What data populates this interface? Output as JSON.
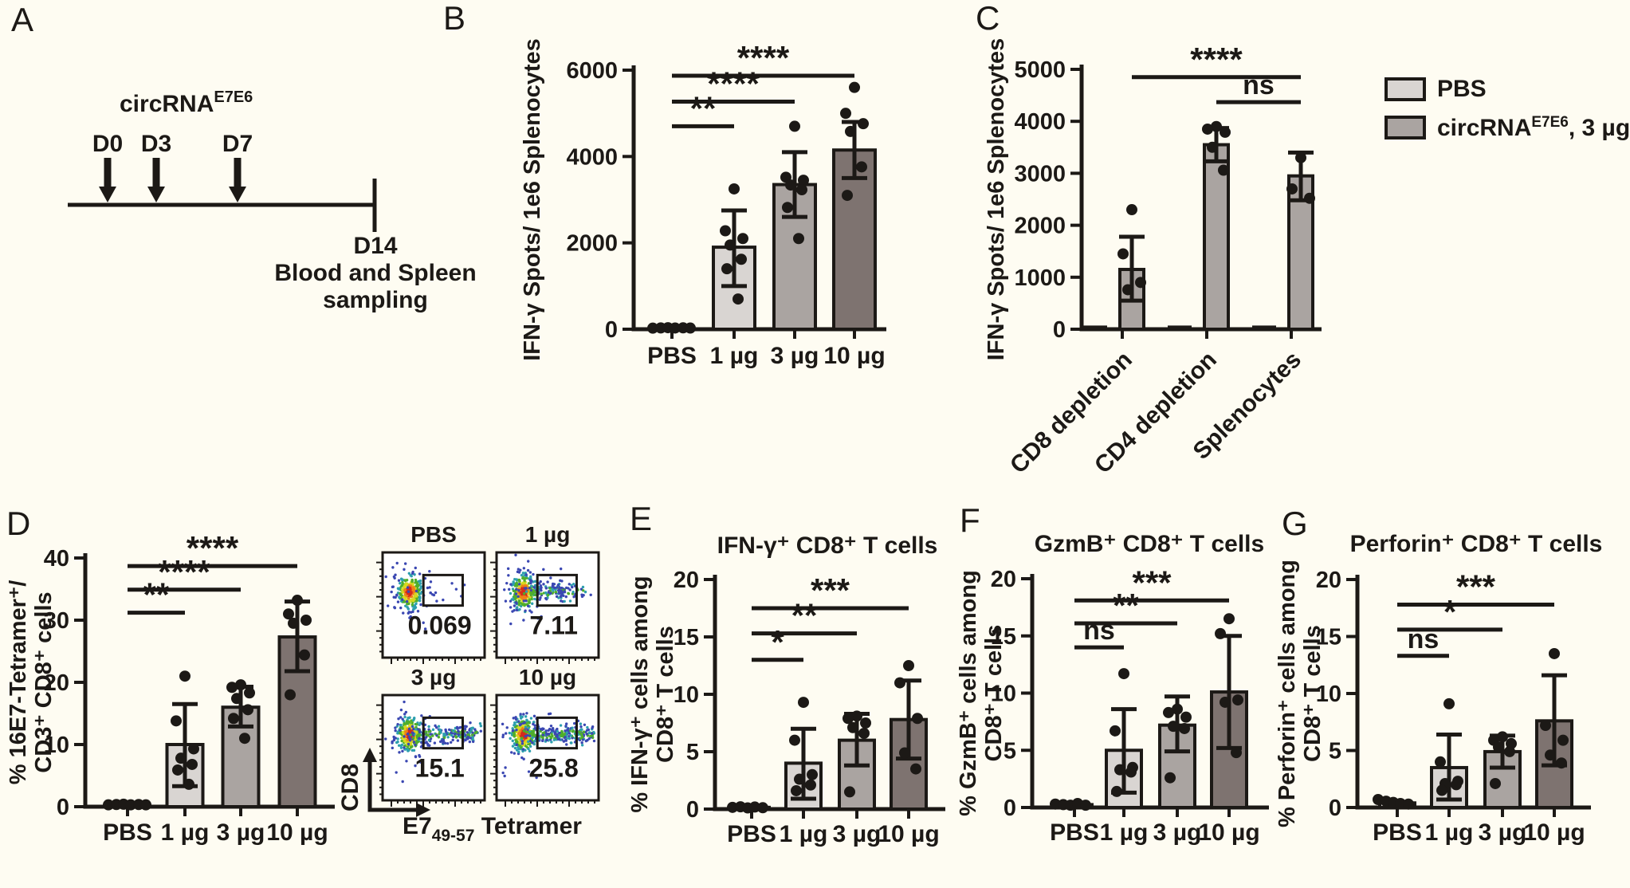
{
  "panels": {
    "A": "A",
    "B": "B",
    "C": "C",
    "D": "D",
    "E": "E",
    "F": "F",
    "G": "G"
  },
  "panelA": {
    "construct_base": "circRNA",
    "construct_sup": "E7E6",
    "timepoints": [
      "D0",
      "D3",
      "D7"
    ],
    "end_label": "D14",
    "end_line1": "Blood and Spleen",
    "end_line2": "sampling"
  },
  "legend": {
    "items": [
      {
        "label": "PBS",
        "colorKey": "light"
      },
      {
        "base": "circRNA",
        "sup": "E7E6",
        "rest": ", 3 µg",
        "colorKey": "medium"
      }
    ]
  },
  "flow": {
    "ylabel": "CD8",
    "xlabel_base": "E7",
    "xlabel_sub": "49-57",
    "xlabel_rest": " Tetramer",
    "plots": [
      {
        "title": "PBS",
        "value": "0.069"
      },
      {
        "title": "1 µg",
        "value": "7.11"
      },
      {
        "title": "3 µg",
        "value": "15.1"
      },
      {
        "title": "10 µg",
        "value": "25.8"
      }
    ]
  },
  "colors": {
    "light": "#d9d5d2",
    "medium": "#aaa4a1",
    "dark": "#7e7370",
    "ink": "#1c1916",
    "background": "#fefcf2",
    "flow_blue": "#3a47b2",
    "flow_teal": "#2d9fae",
    "flow_green": "#4fae2b",
    "flow_yellow": "#d6d81f",
    "flow_orange": "#ef8018",
    "flow_red": "#d32a1c"
  },
  "chart_data": [
    {
      "panel": "B",
      "type": "bar",
      "title": "",
      "ylabel_lines": [
        "IFN-γ Spots/ 1e6 Splenocytes"
      ],
      "ylim": [
        0,
        6000
      ],
      "yticks": [
        0,
        2000,
        4000,
        6000
      ],
      "categories": [
        "PBS",
        "1 µg",
        "3 µg",
        "10 µg"
      ],
      "bars": [
        {
          "label": "PBS",
          "value": 25,
          "color": "light",
          "points": [
            25,
            30,
            35,
            28,
            32,
            27
          ]
        },
        {
          "label": "1 µg",
          "value": 1900,
          "color": "light",
          "err": [
            1000,
            2750
          ],
          "points": [
            3250,
            2280,
            2100,
            1950,
            1620,
            1400,
            700
          ]
        },
        {
          "label": "3 µg",
          "value": 3350,
          "color": "medium",
          "err": [
            2600,
            4100
          ],
          "points": [
            4700,
            3520,
            3450,
            3340,
            3230,
            2820,
            2100
          ]
        },
        {
          "label": "10 µg",
          "value": 4150,
          "color": "dark",
          "err": [
            3500,
            4800
          ],
          "points": [
            5600,
            5000,
            4760,
            4580,
            3760,
            3100
          ]
        }
      ],
      "sig": [
        {
          "from": 0,
          "to": 1,
          "label": "**",
          "y": 4700
        },
        {
          "from": 0,
          "to": 2,
          "label": "****",
          "y": 5270
        },
        {
          "from": 0,
          "to": 3,
          "label": "****",
          "y": 5870
        }
      ]
    },
    {
      "panel": "C",
      "type": "grouped-bar",
      "ylabel_lines": [
        "IFN-γ Spots/ 1e6 Splenocytes"
      ],
      "ylim": [
        0,
        5000
      ],
      "yticks": [
        0,
        1000,
        2000,
        3000,
        4000,
        5000
      ],
      "groups": [
        {
          "label": "CD8 depletion",
          "pbs": 40,
          "circ": {
            "value": 1150,
            "err": [
              550,
              1780
            ],
            "points": [
              2300,
              1450,
              900,
              760
            ]
          }
        },
        {
          "label": "CD4 depletion",
          "pbs": 40,
          "circ": {
            "value": 3550,
            "err": [
              3230,
              3870
            ],
            "points": [
              3900,
              3850,
              3790,
              3500,
              3060
            ]
          }
        },
        {
          "label": "Splenocytes",
          "pbs": 40,
          "circ": {
            "value": 2950,
            "err": [
              2480,
              3400
            ],
            "points": [
              3300,
              2700,
              2520
            ]
          }
        }
      ],
      "sig": [
        {
          "from": 1,
          "to": 2,
          "label": "ns",
          "y": 4370
        },
        {
          "from": 0,
          "to": 2,
          "label": "****",
          "y": 4850
        }
      ]
    },
    {
      "panel": "D",
      "type": "bar",
      "ylabel_lines": [
        "% 16E7-Tetramer⁺/",
        "CD3⁺ CD8⁺ cells"
      ],
      "ylim": [
        0,
        40
      ],
      "yticks": [
        0,
        10,
        20,
        30,
        40
      ],
      "categories": [
        "PBS",
        "1 µg",
        "3 µg",
        "10 µg"
      ],
      "bars": [
        {
          "label": "PBS",
          "value": 0.35,
          "color": "light",
          "points": [
            0.3,
            0.35,
            0.4,
            0.3,
            0.35,
            0.3
          ]
        },
        {
          "label": "1 µg",
          "value": 10,
          "color": "light",
          "err": [
            3.3,
            16.5
          ],
          "points": [
            21,
            13.8,
            9.3,
            7.8,
            6.8,
            5.9,
            3.6
          ]
        },
        {
          "label": "3 µg",
          "value": 16,
          "color": "medium",
          "err": [
            12.9,
            19.3
          ],
          "points": [
            19.6,
            19.2,
            18.3,
            17.4,
            15.6,
            14.2,
            11
          ]
        },
        {
          "label": "10 µg",
          "value": 27.3,
          "color": "dark",
          "err": [
            21.8,
            33
          ],
          "points": [
            33.2,
            31,
            30,
            29.5,
            24.4,
            18
          ]
        }
      ],
      "sig": [
        {
          "from": 0,
          "to": 1,
          "label": "**",
          "y": 31.2
        },
        {
          "from": 0,
          "to": 2,
          "label": "****",
          "y": 34.9
        },
        {
          "from": 0,
          "to": 3,
          "label": "****",
          "y": 38.7
        }
      ]
    },
    {
      "panel": "E",
      "type": "bar",
      "title": "IFN-γ⁺ CD8⁺ T cells",
      "ylabel_lines": [
        "% IFN-γ⁺ cells among",
        "CD8⁺ T cells"
      ],
      "ylim": [
        0,
        20
      ],
      "yticks": [
        0,
        5,
        10,
        15,
        20
      ],
      "categories": [
        "PBS",
        "1 µg",
        "3 µg",
        "10 µg"
      ],
      "bars": [
        {
          "label": "PBS",
          "value": 0.15,
          "color": "light",
          "points": [
            0.15,
            0.2,
            0.1,
            0.18,
            0.12
          ]
        },
        {
          "label": "1 µg",
          "value": 4,
          "color": "light",
          "err": [
            0.9,
            7
          ],
          "points": [
            9.3,
            6,
            3,
            2.6,
            2.1,
            1.6
          ]
        },
        {
          "label": "3 µg",
          "value": 6,
          "color": "medium",
          "err": [
            3.8,
            8.3
          ],
          "points": [
            8.1,
            7.9,
            7.5,
            7.1,
            6.6,
            1.5
          ]
        },
        {
          "label": "10 µg",
          "value": 7.8,
          "color": "dark",
          "err": [
            4.4,
            11.2
          ],
          "points": [
            12.5,
            11,
            7.9,
            4.9,
            3.5
          ]
        }
      ],
      "sig": [
        {
          "from": 0,
          "to": 1,
          "label": "*",
          "y": 13
        },
        {
          "from": 0,
          "to": 2,
          "label": "**",
          "y": 15.3
        },
        {
          "from": 0,
          "to": 3,
          "label": "***",
          "y": 17.5
        }
      ]
    },
    {
      "panel": "F",
      "type": "bar",
      "title": "GzmB⁺ CD8⁺ T cells",
      "ylabel_lines": [
        "% GzmB⁺ cells among",
        "CD8⁺ T cells"
      ],
      "ylim": [
        0,
        20
      ],
      "yticks": [
        0,
        5,
        10,
        15,
        20
      ],
      "categories": [
        "PBS",
        "1 µg",
        "3 µg",
        "10 µg"
      ],
      "bars": [
        {
          "label": "PBS",
          "value": 0.25,
          "color": "light",
          "points": [
            0.3,
            0.25,
            0.2,
            0.35,
            0.2
          ]
        },
        {
          "label": "1 µg",
          "value": 5,
          "color": "light",
          "err": [
            1.3,
            8.6
          ],
          "points": [
            11.7,
            6.7,
            3.5,
            3.3,
            3.1,
            1.4
          ]
        },
        {
          "label": "3 µg",
          "value": 7.2,
          "color": "medium",
          "err": [
            4.9,
            9.7
          ],
          "points": [
            8.6,
            8.3,
            7.9,
            7.1,
            6.9,
            2.6
          ]
        },
        {
          "label": "10 µg",
          "value": 10.1,
          "color": "dark",
          "err": [
            5.2,
            15
          ],
          "points": [
            16.5,
            15.2,
            9.4,
            9.2,
            4.8
          ]
        }
      ],
      "sig": [
        {
          "from": 0,
          "to": 1,
          "label": "ns",
          "y": 14
        },
        {
          "from": 0,
          "to": 2,
          "label": "**",
          "y": 16.1
        },
        {
          "from": 0,
          "to": 3,
          "label": "***",
          "y": 18.1
        }
      ]
    },
    {
      "panel": "G",
      "type": "bar",
      "title": "Perforin⁺ CD8⁺ T cells",
      "ylabel_lines": [
        "% Perforin⁺ cells among",
        "CD8⁺ T cells"
      ],
      "ylim": [
        0,
        20
      ],
      "yticks": [
        0,
        5,
        10,
        15,
        20
      ],
      "categories": [
        "PBS",
        "1 µg",
        "3 µg",
        "10 µg"
      ],
      "bars": [
        {
          "label": "PBS",
          "value": 0.4,
          "color": "light",
          "points": [
            0.7,
            0.55,
            0.45,
            0.35,
            0.3
          ]
        },
        {
          "label": "1 µg",
          "value": 3.5,
          "color": "light",
          "err": [
            0.7,
            6.4
          ],
          "points": [
            9.1,
            4,
            2.3,
            2.1,
            2,
            1.5
          ]
        },
        {
          "label": "3 µg",
          "value": 4.9,
          "color": "medium",
          "err": [
            3.5,
            6.3
          ],
          "points": [
            6.2,
            5.9,
            5.6,
            5.3,
            4.9,
            2.1
          ]
        },
        {
          "label": "10 µg",
          "value": 7.6,
          "color": "dark",
          "err": [
            3.7,
            11.6
          ],
          "points": [
            13.5,
            7.2,
            5.9,
            4.6,
            3.9
          ]
        }
      ],
      "sig": [
        {
          "from": 0,
          "to": 1,
          "label": "ns",
          "y": 13.3
        },
        {
          "from": 0,
          "to": 2,
          "label": "*",
          "y": 15.6
        },
        {
          "from": 0,
          "to": 3,
          "label": "***",
          "y": 17.8
        }
      ]
    }
  ]
}
